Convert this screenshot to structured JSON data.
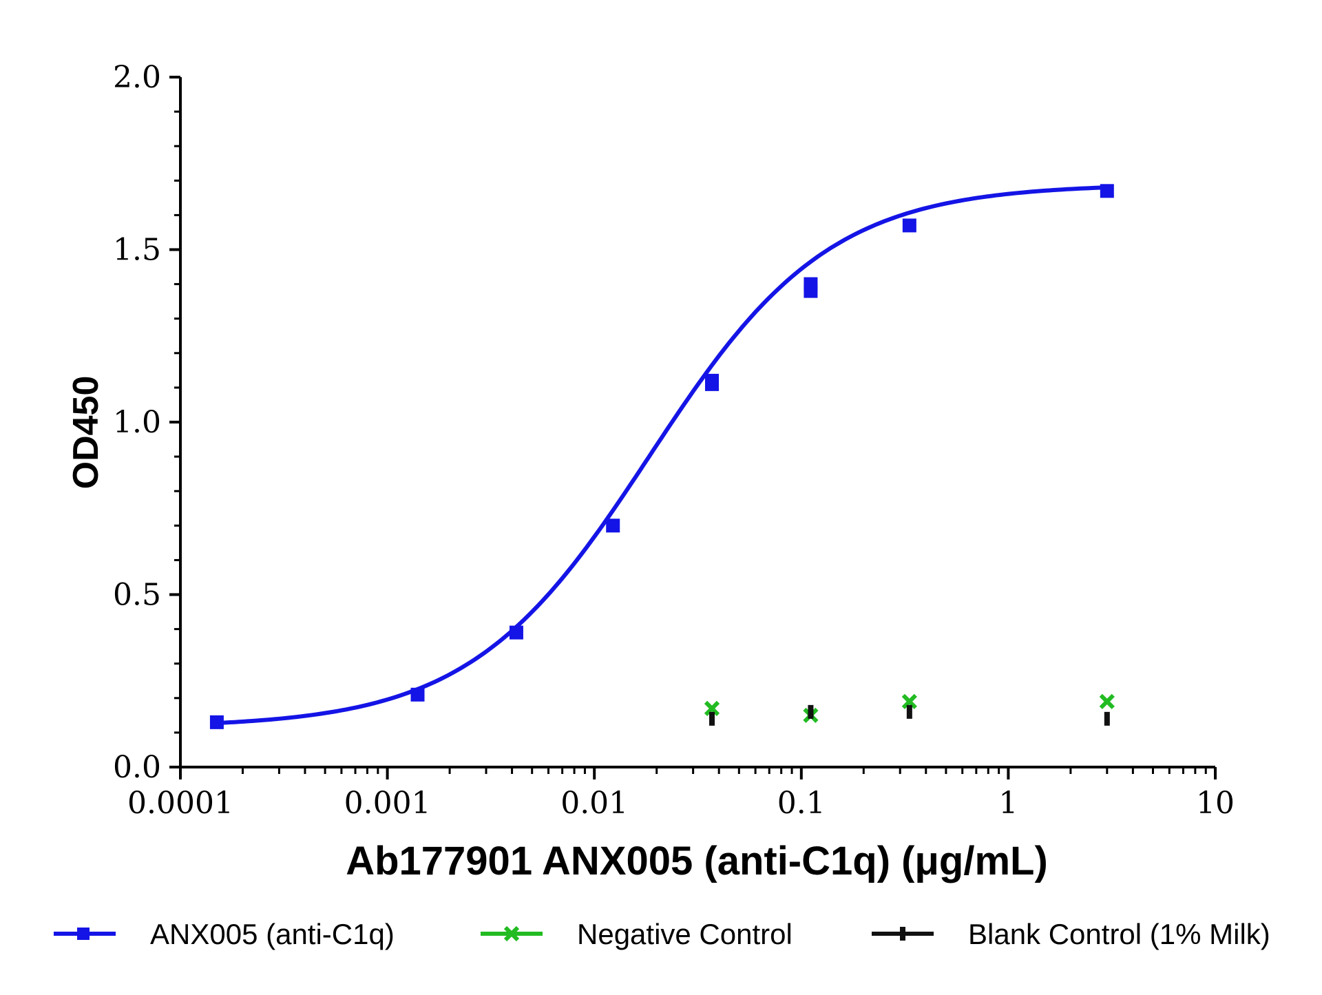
{
  "chart_data": {
    "type": "scatter",
    "xlabel": "Ab177901 ANX005 (anti-C1q) (μg/mL)",
    "ylabel": "OD450",
    "xscale": "log",
    "xlim": [
      0.0001,
      10
    ],
    "ylim": [
      0,
      2.0
    ],
    "x_ticks": [
      {
        "value": 0.0001,
        "label": "0.0001"
      },
      {
        "value": 0.001,
        "label": "0.001"
      },
      {
        "value": 0.01,
        "label": "0.01"
      },
      {
        "value": 0.1,
        "label": "0.1"
      },
      {
        "value": 1,
        "label": "1"
      },
      {
        "value": 10,
        "label": "10"
      }
    ],
    "y_ticks": [
      {
        "value": 0,
        "label": "0.0"
      },
      {
        "value": 0.5,
        "label": "0.5"
      },
      {
        "value": 1.0,
        "label": "1.0"
      },
      {
        "value": 1.5,
        "label": "1.5"
      },
      {
        "value": 2.0,
        "label": "2.0"
      }
    ],
    "grid": false,
    "legend_position": "bottom",
    "series": [
      {
        "name": "ANX005 (anti-C1q)",
        "color": "#1414e6",
        "marker": "square",
        "fit_curve": true,
        "points": [
          {
            "x": 0.00015,
            "y": 0.13
          },
          {
            "x": 0.0014,
            "y": 0.21
          },
          {
            "x": 0.0042,
            "y": 0.39
          },
          {
            "x": 0.0123,
            "y": 0.7
          },
          {
            "x": 0.037,
            "y": 1.12
          },
          {
            "x": 0.037,
            "y": 1.11
          },
          {
            "x": 0.111,
            "y": 1.4
          },
          {
            "x": 0.111,
            "y": 1.38
          },
          {
            "x": 0.333,
            "y": 1.57
          },
          {
            "x": 3.0,
            "y": 1.67
          }
        ]
      },
      {
        "name": "Negative Control",
        "color": "#22bb22",
        "marker": "x",
        "fit_curve": false,
        "points": [
          {
            "x": 0.037,
            "y": 0.17
          },
          {
            "x": 0.111,
            "y": 0.15
          },
          {
            "x": 0.333,
            "y": 0.19
          },
          {
            "x": 3.0,
            "y": 0.19
          }
        ]
      },
      {
        "name": "Blank Control (1% Milk)",
        "color": "#111111",
        "marker": "bar",
        "fit_curve": false,
        "points": [
          {
            "x": 0.037,
            "y": 0.14
          },
          {
            "x": 0.111,
            "y": 0.16
          },
          {
            "x": 0.333,
            "y": 0.16
          },
          {
            "x": 3.0,
            "y": 0.14
          }
        ]
      }
    ]
  }
}
